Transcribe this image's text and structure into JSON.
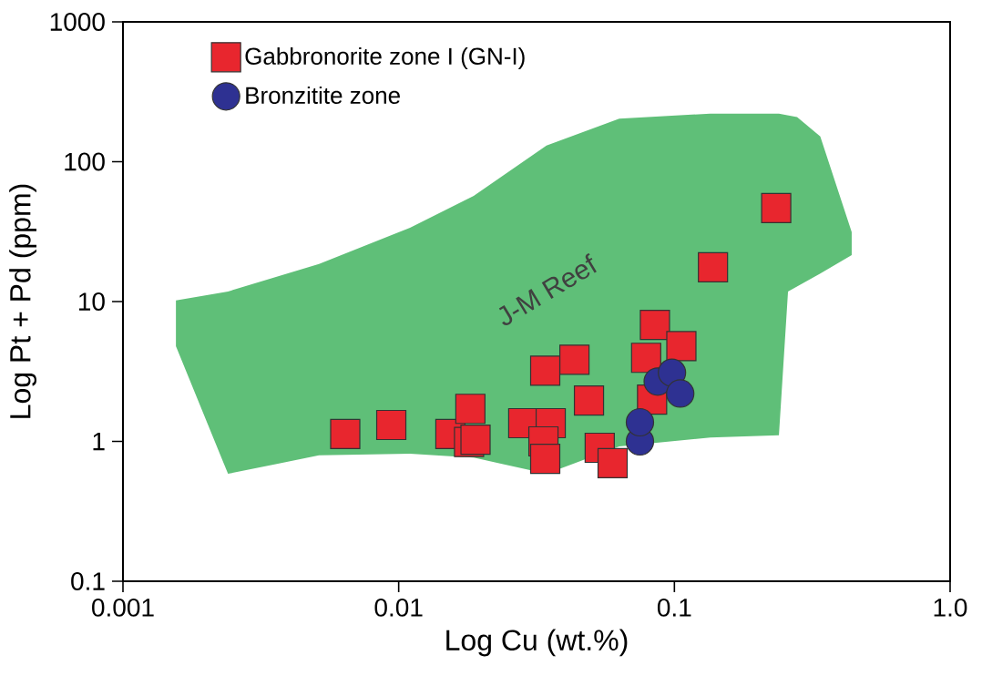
{
  "chart_data": {
    "type": "scatter",
    "xlabel": "Log Cu (wt.%)",
    "ylabel": "Log Pt + Pd (ppm)",
    "log": "xy",
    "xlim": [
      0.001,
      1.0
    ],
    "ylim": [
      0.1,
      1000
    ],
    "xticks": [
      0.001,
      0.01,
      0.1,
      {
        "value": 1.0,
        "label": "1.0"
      }
    ],
    "yticks": [
      0.1,
      1,
      10,
      100,
      1000
    ],
    "grid": false,
    "legend": "top left",
    "annotations": [
      "J-M Reef"
    ],
    "series": [
      {
        "name": "Gabbronorite zone I (GN-I)",
        "marker": "square",
        "color": "#e8262e",
        "x": [
          0.0064,
          0.0094,
          0.0154,
          0.0182,
          0.018,
          0.019,
          0.0283,
          0.0356,
          0.0335,
          0.034,
          0.034,
          0.0434,
          0.049,
          0.0536,
          0.0597,
          0.079,
          0.085,
          0.083,
          0.106,
          0.138,
          0.234
        ],
        "values": [
          1.13,
          1.31,
          1.13,
          1.71,
          0.99,
          1.03,
          1.35,
          1.35,
          1.0,
          0.75,
          3.2,
          3.84,
          1.96,
          0.9,
          0.7,
          3.96,
          6.8,
          1.99,
          4.8,
          17.6,
          46.6
        ]
      },
      {
        "name": "Bronzitite zone",
        "marker": "circle",
        "color": "#2e3192",
        "x": [
          0.075,
          0.075,
          0.087,
          0.098,
          0.105
        ],
        "values": [
          1.0,
          1.37,
          2.68,
          3.1,
          2.2
        ]
      }
    ]
  }
}
